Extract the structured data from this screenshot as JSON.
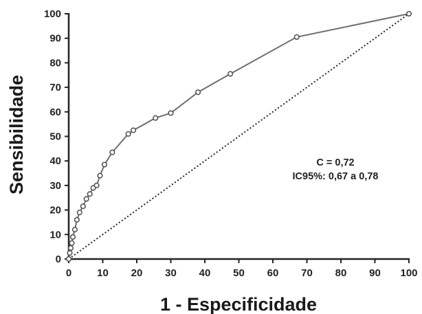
{
  "chart_data": {
    "type": "line",
    "title": "",
    "xlabel": "1 - Especificidade",
    "ylabel": "Sensibilidade",
    "xlim": [
      0,
      100
    ],
    "ylim": [
      0,
      100
    ],
    "x_ticks": [
      "0",
      "10",
      "20",
      "30",
      "40",
      "50",
      "60",
      "70",
      "80",
      "90",
      "100"
    ],
    "y_ticks": [
      "0",
      "10",
      "20",
      "30",
      "40",
      "50",
      "60",
      "70",
      "80",
      "90",
      "100"
    ],
    "grid": false,
    "legend": "none",
    "series": [
      {
        "line_color": "#6e6e6e",
        "marker": "hollow-circle",
        "x": [
          0,
          0.3,
          0.6,
          0.9,
          1.2,
          1.8,
          2.4,
          3.2,
          4.2,
          5.2,
          6.2,
          7.2,
          8.2,
          9.2,
          10.5,
          12.8,
          17.5,
          19.0,
          25.5,
          30.0,
          38.0,
          47.5,
          67.0,
          100
        ],
        "y": [
          0,
          2.5,
          4.5,
          6.5,
          9.0,
          12.0,
          16.0,
          19.0,
          21.5,
          24.5,
          26.5,
          29.0,
          30.0,
          34.0,
          38.5,
          43.5,
          51.0,
          52.5,
          57.5,
          59.5,
          68.0,
          75.5,
          90.5,
          100
        ]
      },
      {
        "line_color": "#222222",
        "dashed": true,
        "x": [
          0,
          100
        ],
        "y": [
          0,
          100
        ]
      }
    ],
    "annotations": [
      "C = 0,72",
      "IC95%: 0,67 a 0,78"
    ]
  }
}
